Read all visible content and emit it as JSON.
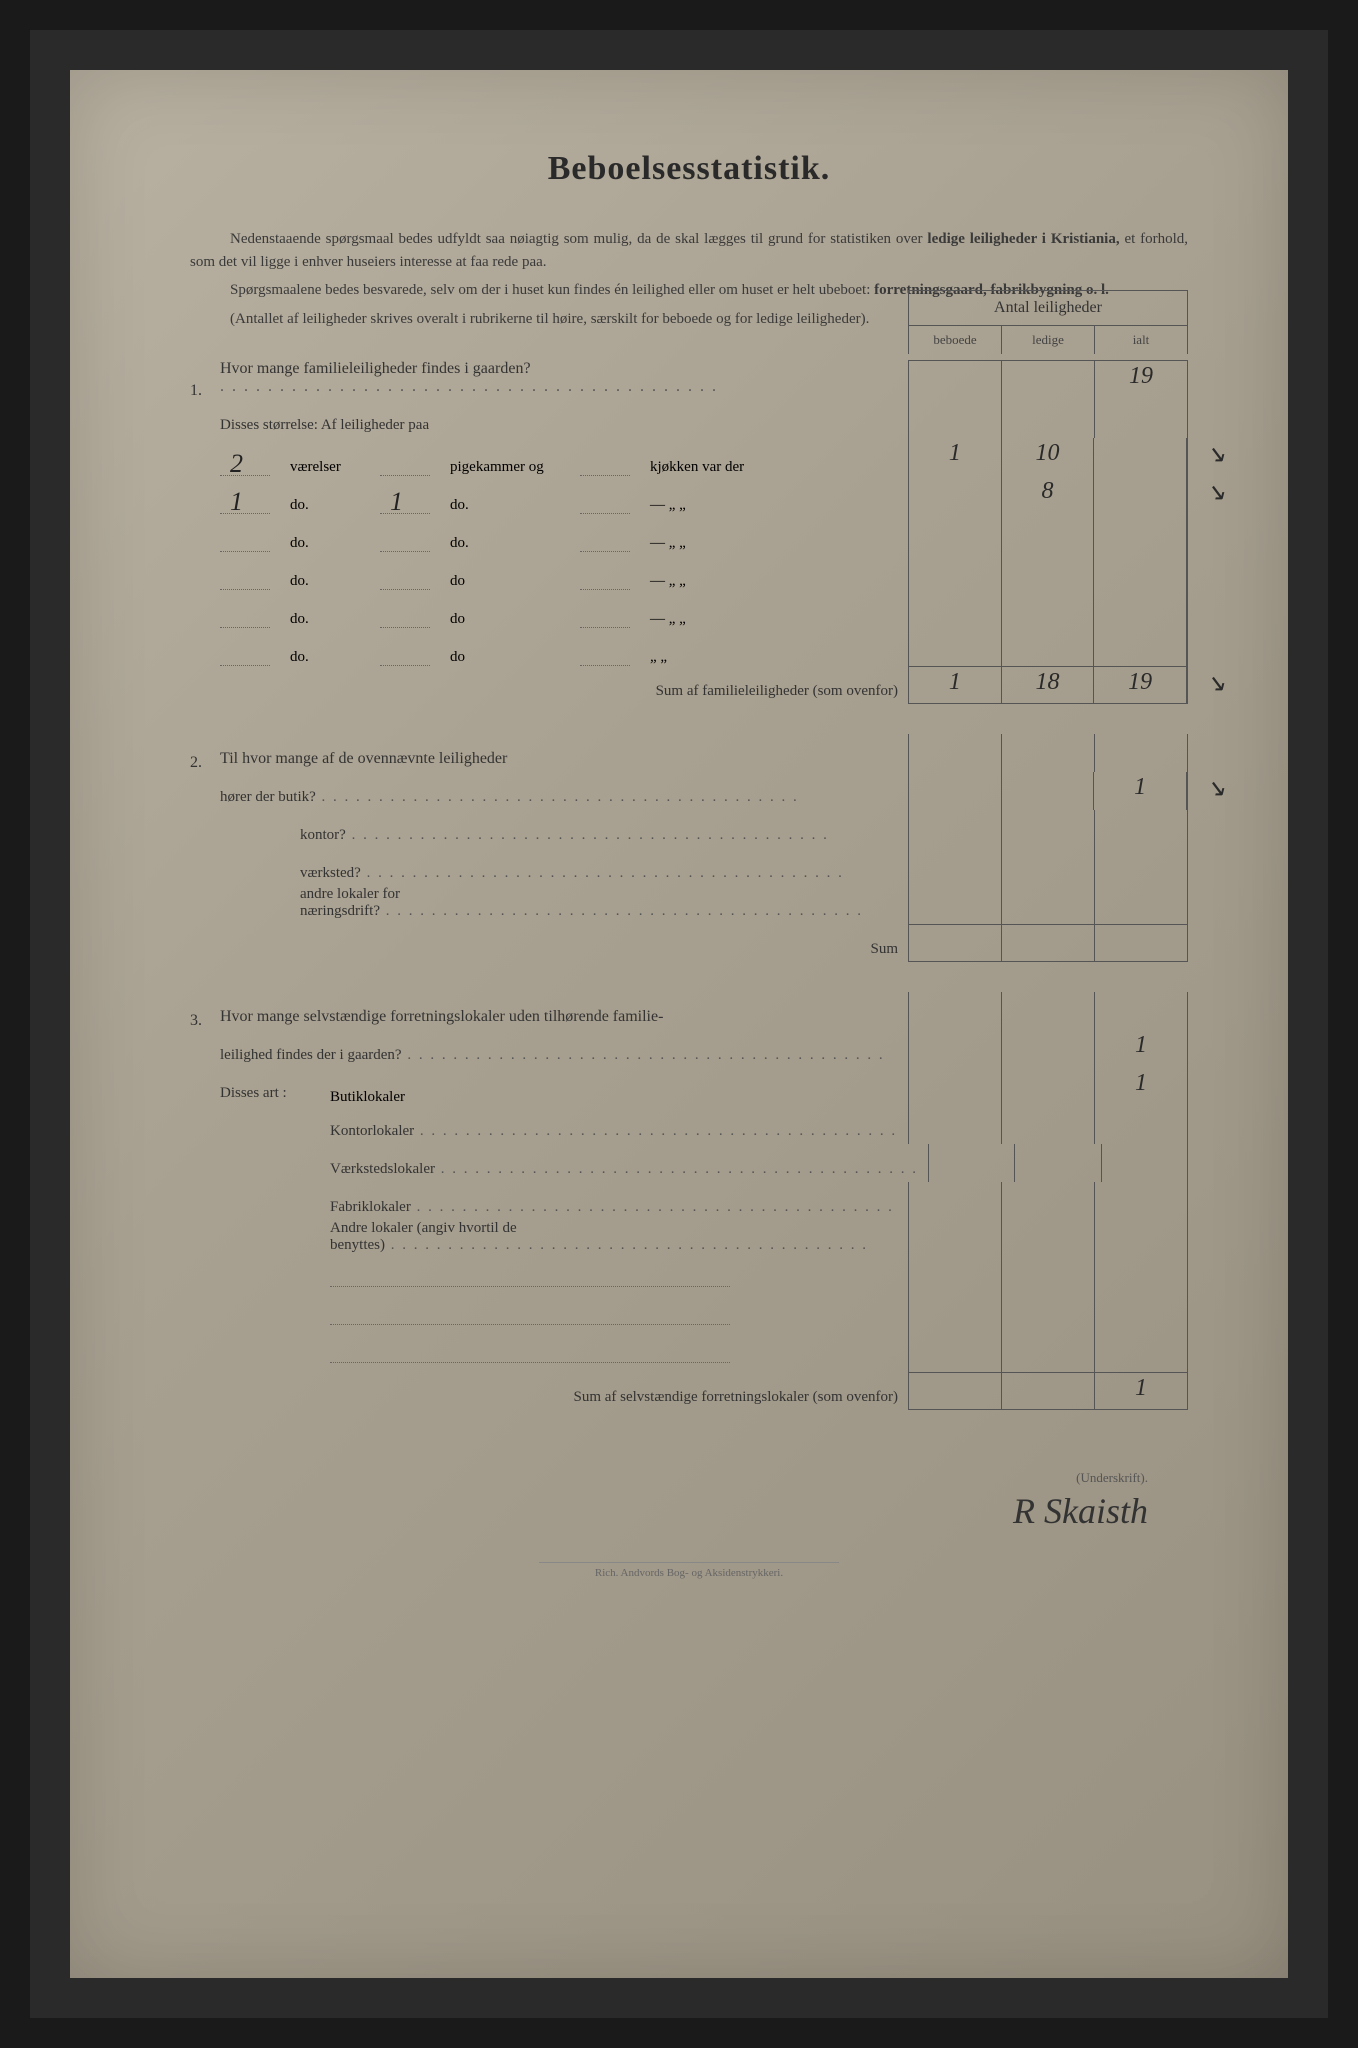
{
  "title": "Beboelsesstatistik.",
  "intro": {
    "p1a": "Nedenstaaende spørgsmaal bedes udfyldt saa nøiagtig som mulig, da de skal lægges til grund for statistiken over ",
    "p1b": "ledige leiligheder i Kristiania,",
    "p1c": " et forhold, som det vil ligge i enhver huseiers interesse at faa rede paa.",
    "p2a": "Spørgsmaalene bedes besvarede, selv om der i huset kun findes én leilighed eller om huset er helt ubeboet: ",
    "p2b": "forretningsgaard, fabrikbygning o. l.",
    "p3": "(Antallet af leiligheder skrives overalt i rubrikerne til høire, særskilt for beboede og for ledige leiligheder)."
  },
  "header": {
    "main": "Antal leiligheder",
    "c1": "beboede",
    "c2": "ledige",
    "c3": "ialt"
  },
  "q1": {
    "num": "1.",
    "text": "Hvor mange familieleiligheder findes i gaarden?",
    "ialt": "19",
    "disses": "Disses størrelse:  Af leiligheder paa",
    "rows": [
      {
        "vaer": "2",
        "vaer_label": "værelser",
        "pig": "",
        "pig_label": "pigekammer og",
        "kjok": "",
        "kjok_label": "kjøkken var der",
        "beb": "1",
        "led": "10",
        "extra": "↘"
      },
      {
        "vaer": "1",
        "vaer_label": "do.",
        "pig": "1",
        "pig_label": "do.",
        "kjok": "",
        "kjok_label": "—     „   „",
        "beb": "",
        "led": "8",
        "extra": "↘"
      },
      {
        "vaer": "",
        "vaer_label": "do.",
        "pig": "",
        "pig_label": "do.",
        "kjok": "",
        "kjok_label": "—     „   „",
        "beb": "",
        "led": "",
        "extra": ""
      },
      {
        "vaer": "",
        "vaer_label": "do.",
        "pig": "",
        "pig_label": "do",
        "kjok": "",
        "kjok_label": "—     „   „",
        "beb": "",
        "led": "",
        "extra": ""
      },
      {
        "vaer": "",
        "vaer_label": "do.",
        "pig": "",
        "pig_label": "do",
        "kjok": "",
        "kjok_label": "—     „   „",
        "beb": "",
        "led": "",
        "extra": ""
      },
      {
        "vaer": "",
        "vaer_label": "do.",
        "pig": "",
        "pig_label": "do",
        "kjok": "",
        "kjok_label": "     „   „",
        "beb": "",
        "led": "",
        "extra": ""
      }
    ],
    "sum_label": "Sum af familieleiligheder (som ovenfor)",
    "sum": {
      "beb": "1",
      "led": "18",
      "ialt": "19",
      "extra": "↘"
    }
  },
  "q2": {
    "num": "2.",
    "text": "Til hvor mange af de ovennævnte leiligheder",
    "rows": [
      {
        "label": "hører der butik?",
        "beb": "",
        "led": "",
        "ialt": "1",
        "extra": "↘"
      },
      {
        "label": "kontor?",
        "beb": "",
        "led": "",
        "ialt": ""
      },
      {
        "label": "værksted?",
        "beb": "",
        "led": "",
        "ialt": ""
      },
      {
        "label": "andre lokaler for næringsdrift?",
        "beb": "",
        "led": "",
        "ialt": ""
      }
    ],
    "sum_label": "Sum"
  },
  "q3": {
    "num": "3.",
    "text1": "Hvor mange selvstændige forretningslokaler uden tilhørende familie-",
    "text2": "leilighed findes der i gaarden?",
    "ialt": "1",
    "disses": "Disses art :",
    "rows": [
      {
        "label": "Butiklokaler",
        "ialt": "1"
      },
      {
        "label": "Kontorlokaler",
        "ialt": ""
      },
      {
        "label": "Værkstedslokaler",
        "ialt": ""
      },
      {
        "label": "Fabriklokaler",
        "ialt": ""
      },
      {
        "label": "Andre lokaler (angiv hvortil de benyttes)",
        "ialt": ""
      }
    ],
    "blanks": [
      "",
      "",
      ""
    ],
    "sum_label": "Sum af selvstændige forretningslokaler (som ovenfor)",
    "sum_ialt": "1"
  },
  "signature": {
    "label": "(Underskrift).",
    "value": "R Skaisth"
  },
  "footer": "Rich. Andvords Bog- og Aksidenstrykkeri."
}
